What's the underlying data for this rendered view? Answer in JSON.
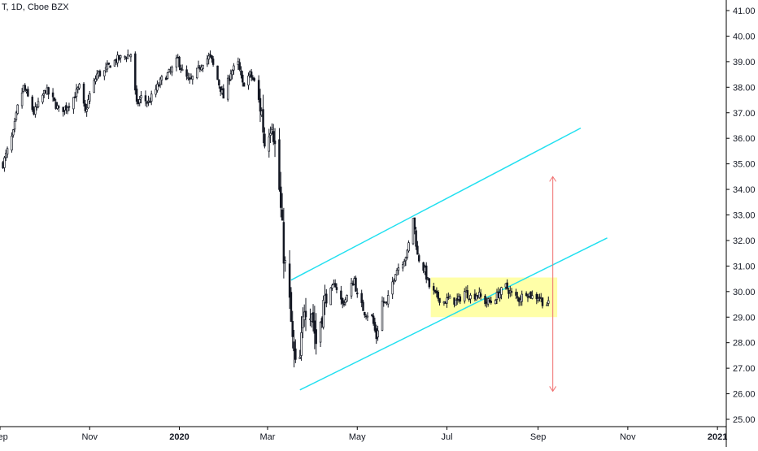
{
  "header": {
    "symbol": "T",
    "interval": "1D",
    "exchange": "Cboe BZX"
  },
  "colors": {
    "candle": "#131722",
    "channel": "#22e0f0",
    "range_box": "#ffff99",
    "arrow": "#f07070",
    "axis_text": "#131722",
    "axis_line": "#000000"
  },
  "chart_data": {
    "type": "candlestick",
    "title": "",
    "xlabel": "",
    "ylabel": "",
    "ylim": [
      25.0,
      41.0
    ],
    "y_ticks": [
      "25.00",
      "26.00",
      "27.00",
      "28.00",
      "29.00",
      "30.00",
      "31.00",
      "32.00",
      "33.00",
      "34.00",
      "35.00",
      "36.00",
      "37.00",
      "38.00",
      "39.00",
      "40.00",
      "41.00"
    ],
    "x_range": [
      "2019-09-01",
      "2021-01-07"
    ],
    "x_ticks": [
      {
        "label": "Sep",
        "date": "2019-09-01"
      },
      {
        "label": "Nov",
        "date": "2019-11-01"
      },
      {
        "label": "2020",
        "date": "2020-01-01"
      },
      {
        "label": "Mar",
        "date": "2020-03-01"
      },
      {
        "label": "May",
        "date": "2020-05-01"
      },
      {
        "label": "Jul",
        "date": "2020-07-01"
      },
      {
        "label": "Sep",
        "date": "2020-09-01"
      },
      {
        "label": "Nov",
        "date": "2020-11-01"
      },
      {
        "label": "2021",
        "date": "2021-01-01"
      }
    ],
    "close_path": [
      [
        "2019-09-03",
        35.0
      ],
      [
        "2019-09-06",
        35.5
      ],
      [
        "2019-09-10",
        36.2
      ],
      [
        "2019-09-13",
        37.2
      ],
      [
        "2019-09-17",
        38.0
      ],
      [
        "2019-09-20",
        37.6
      ],
      [
        "2019-09-24",
        37.0
      ],
      [
        "2019-09-27",
        37.3
      ],
      [
        "2019-10-02",
        37.9
      ],
      [
        "2019-10-07",
        37.5
      ],
      [
        "2019-10-11",
        37.1
      ],
      [
        "2019-10-16",
        37.2
      ],
      [
        "2019-10-21",
        37.6
      ],
      [
        "2019-10-25",
        38.0
      ],
      [
        "2019-10-29",
        37.0
      ],
      [
        "2019-11-01",
        37.7
      ],
      [
        "2019-11-06",
        38.5
      ],
      [
        "2019-11-11",
        38.6
      ],
      [
        "2019-11-15",
        38.9
      ],
      [
        "2019-11-20",
        39.1
      ],
      [
        "2019-11-25",
        39.2
      ],
      [
        "2019-11-29",
        39.3
      ],
      [
        "2019-12-03",
        37.3
      ],
      [
        "2019-12-06",
        37.6
      ],
      [
        "2019-12-11",
        37.4
      ],
      [
        "2019-12-16",
        37.9
      ],
      [
        "2019-12-20",
        38.3
      ],
      [
        "2019-12-26",
        38.6
      ],
      [
        "2019-12-31",
        39.1
      ],
      [
        "2020-01-03",
        38.6
      ],
      [
        "2020-01-08",
        38.2
      ],
      [
        "2020-01-13",
        38.6
      ],
      [
        "2020-01-17",
        39.0
      ],
      [
        "2020-01-22",
        39.2
      ],
      [
        "2020-01-27",
        38.3
      ],
      [
        "2020-01-31",
        37.6
      ],
      [
        "2020-02-05",
        38.6
      ],
      [
        "2020-02-10",
        38.9
      ],
      [
        "2020-02-13",
        38.1
      ],
      [
        "2020-02-18",
        38.5
      ],
      [
        "2020-02-21",
        38.2
      ],
      [
        "2020-02-26",
        37.0
      ],
      [
        "2020-02-28",
        35.8
      ],
      [
        "2020-03-04",
        36.8
      ],
      [
        "2020-03-09",
        34.0
      ],
      [
        "2020-03-12",
        31.5
      ],
      [
        "2020-03-16",
        29.5
      ],
      [
        "2020-03-18",
        28.0
      ],
      [
        "2020-03-20",
        27.0
      ],
      [
        "2020-03-23",
        27.3
      ],
      [
        "2020-03-26",
        29.5
      ],
      [
        "2020-03-31",
        29.3
      ],
      [
        "2020-04-03",
        28.0
      ],
      [
        "2020-04-08",
        29.5
      ],
      [
        "2020-04-13",
        30.0
      ],
      [
        "2020-04-16",
        30.3
      ],
      [
        "2020-04-21",
        29.5
      ],
      [
        "2020-04-24",
        29.8
      ],
      [
        "2020-04-29",
        30.5
      ],
      [
        "2020-05-01",
        29.8
      ],
      [
        "2020-05-06",
        29.2
      ],
      [
        "2020-05-11",
        29.0
      ],
      [
        "2020-05-14",
        28.2
      ],
      [
        "2020-05-18",
        29.6
      ],
      [
        "2020-05-21",
        29.5
      ],
      [
        "2020-05-27",
        30.8
      ],
      [
        "2020-06-01",
        31.2
      ],
      [
        "2020-06-04",
        31.5
      ],
      [
        "2020-06-08",
        32.9
      ],
      [
        "2020-06-11",
        31.4
      ],
      [
        "2020-06-16",
        30.8
      ],
      [
        "2020-06-19",
        30.2
      ],
      [
        "2020-06-24",
        29.8
      ],
      [
        "2020-06-29",
        29.6
      ],
      [
        "2020-07-02",
        29.7
      ],
      [
        "2020-07-08",
        29.6
      ],
      [
        "2020-07-13",
        30.0
      ],
      [
        "2020-07-17",
        29.8
      ],
      [
        "2020-07-22",
        29.9
      ],
      [
        "2020-07-27",
        29.6
      ],
      [
        "2020-07-31",
        29.6
      ],
      [
        "2020-08-05",
        29.9
      ],
      [
        "2020-08-10",
        30.2
      ],
      [
        "2020-08-14",
        29.9
      ],
      [
        "2020-08-19",
        29.7
      ],
      [
        "2020-08-24",
        30.0
      ],
      [
        "2020-08-28",
        29.8
      ],
      [
        "2020-09-02",
        29.8
      ],
      [
        "2020-09-04",
        29.6
      ],
      [
        "2020-09-08",
        29.5
      ]
    ],
    "annotations": {
      "channel_upper": [
        [
          "2020-03-17",
          30.45
        ],
        [
          "2020-09-30",
          36.4
        ]
      ],
      "channel_lower": [
        [
          "2020-03-23",
          26.15
        ],
        [
          "2020-10-18",
          32.1
        ]
      ],
      "range_box": {
        "date_from": "2020-06-20",
        "date_to": "2020-09-14",
        "y_from": 29.0,
        "y_to": 30.55
      },
      "arrow": {
        "date": "2020-09-11",
        "y_from": 26.1,
        "y_to": 34.5
      }
    }
  }
}
